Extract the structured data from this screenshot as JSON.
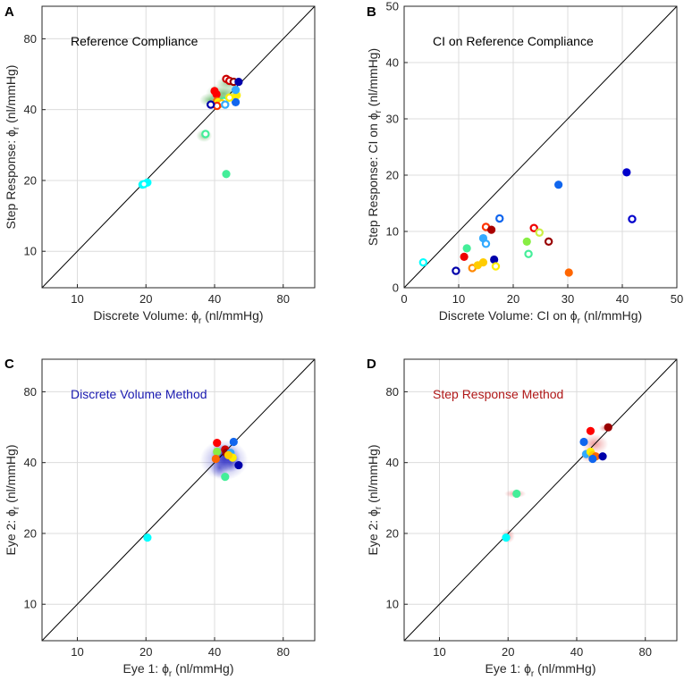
{
  "figure": {
    "panels": [
      {
        "id": "A",
        "label": "A"
      },
      {
        "id": "B",
        "label": "B"
      },
      {
        "id": "C",
        "label": "C"
      },
      {
        "id": "D",
        "label": "D"
      }
    ]
  },
  "chart_data": [
    {
      "panel": "A",
      "type": "scatter",
      "title": "Reference Compliance",
      "title_color": "#000000",
      "scale": "log",
      "xlabel": "Discrete Volume: ",
      "ylabel": "Step Response: ",
      "axis_symbol": "ϕ",
      "axis_subscript": "r",
      "axis_unit": " (nl/mmHg)",
      "xlim": [
        7,
        110
      ],
      "ylim": [
        7,
        110
      ],
      "ticks": [
        10,
        20,
        40,
        80
      ],
      "tick_labels": [
        "10",
        "20",
        "40",
        "80"
      ],
      "identity_line": true,
      "density": {
        "color": "#2a9a2a",
        "blobs": [
          [
            44,
            47,
            9,
            5
          ],
          [
            42,
            44,
            5,
            4
          ],
          [
            46,
            52,
            6,
            3
          ],
          [
            38,
            44,
            4,
            3
          ],
          [
            36,
            31,
            3,
            2
          ]
        ]
      },
      "points": [
        {
          "x": 19.3,
          "y": 19.2,
          "color": "#00ffff",
          "filled": true
        },
        {
          "x": 20.3,
          "y": 19.6,
          "color": "#00ffff",
          "filled": true
        },
        {
          "x": 19.6,
          "y": 19.3,
          "color": "#00ffff",
          "filled": false
        },
        {
          "x": 36.5,
          "y": 31.5,
          "color": "#44ee99",
          "filled": false
        },
        {
          "x": 45,
          "y": 21.3,
          "color": "#44ee99",
          "filled": true
        },
        {
          "x": 40,
          "y": 48,
          "color": "#ff0000",
          "filled": true
        },
        {
          "x": 40.8,
          "y": 46.5,
          "color": "#ff0000",
          "filled": true
        },
        {
          "x": 41,
          "y": 43.5,
          "color": "#ff6600",
          "filled": true
        },
        {
          "x": 41.5,
          "y": 43,
          "color": "#ffee00",
          "filled": true
        },
        {
          "x": 45,
          "y": 54,
          "color": "#cc0000",
          "filled": false
        },
        {
          "x": 46.5,
          "y": 53,
          "color": "#cc0000",
          "filled": false
        },
        {
          "x": 48.5,
          "y": 52.5,
          "color": "#990000",
          "filled": false
        },
        {
          "x": 51,
          "y": 52.5,
          "color": "#0000aa",
          "filled": true
        },
        {
          "x": 50,
          "y": 46,
          "color": "#ffee00",
          "filled": true
        },
        {
          "x": 49.5,
          "y": 48.5,
          "color": "#33aaff",
          "filled": true
        },
        {
          "x": 49.5,
          "y": 43,
          "color": "#1166ee",
          "filled": true
        },
        {
          "x": 44,
          "y": 43.5,
          "color": "#44ee99",
          "filled": false
        },
        {
          "x": 43,
          "y": 42.5,
          "color": "#ffcc00",
          "filled": false
        },
        {
          "x": 41,
          "y": 41.5,
          "color": "#ff3300",
          "filled": false
        },
        {
          "x": 44.5,
          "y": 42,
          "color": "#33aaff",
          "filled": false
        },
        {
          "x": 38.5,
          "y": 42,
          "color": "#0000aa",
          "filled": false
        },
        {
          "x": 46.5,
          "y": 45,
          "color": "#ffee00",
          "filled": false
        }
      ]
    },
    {
      "panel": "B",
      "type": "scatter",
      "title": "CI on Reference Compliance",
      "title_color": "#000000",
      "scale": "linear",
      "xlabel": "Discrete Volume: CI on ",
      "ylabel": "Step Response: CI on ",
      "axis_symbol": "ϕ",
      "axis_subscript": "r",
      "axis_unit": " (nl/mmHg)",
      "xlim": [
        0,
        50
      ],
      "ylim": [
        0,
        50
      ],
      "ticks": [
        0,
        10,
        20,
        30,
        40,
        50
      ],
      "tick_labels": [
        "0",
        "10",
        "20",
        "30",
        "40",
        "50"
      ],
      "identity_line": true,
      "points": [
        {
          "x": 3.5,
          "y": 4.5,
          "color": "#00ffff",
          "filled": false
        },
        {
          "x": 9.5,
          "y": 3,
          "color": "#0000aa",
          "filled": false
        },
        {
          "x": 11,
          "y": 5.5,
          "color": "#ee0000",
          "filled": true
        },
        {
          "x": 11.5,
          "y": 7,
          "color": "#44ee99",
          "filled": true
        },
        {
          "x": 12.5,
          "y": 3.5,
          "color": "#ff8800",
          "filled": false
        },
        {
          "x": 13.5,
          "y": 4,
          "color": "#ffcc00",
          "filled": true
        },
        {
          "x": 14.5,
          "y": 4.5,
          "color": "#ffcc00",
          "filled": true
        },
        {
          "x": 14.5,
          "y": 8.8,
          "color": "#33aaff",
          "filled": true
        },
        {
          "x": 15,
          "y": 7.8,
          "color": "#33aaff",
          "filled": false
        },
        {
          "x": 15,
          "y": 10.8,
          "color": "#ff3300",
          "filled": false
        },
        {
          "x": 16,
          "y": 10.3,
          "color": "#aa0000",
          "filled": true
        },
        {
          "x": 16.5,
          "y": 5,
          "color": "#0000aa",
          "filled": true
        },
        {
          "x": 16.8,
          "y": 3.8,
          "color": "#ffee00",
          "filled": false
        },
        {
          "x": 17.5,
          "y": 12.3,
          "color": "#1166ee",
          "filled": false
        },
        {
          "x": 22.5,
          "y": 8.2,
          "color": "#88ee44",
          "filled": true
        },
        {
          "x": 22.8,
          "y": 6,
          "color": "#44ee99",
          "filled": false
        },
        {
          "x": 23.8,
          "y": 10.6,
          "color": "#ee0000",
          "filled": false
        },
        {
          "x": 24.8,
          "y": 9.8,
          "color": "#ccee44",
          "filled": false
        },
        {
          "x": 26.5,
          "y": 8.2,
          "color": "#990000",
          "filled": false
        },
        {
          "x": 28.3,
          "y": 18.3,
          "color": "#1166ee",
          "filled": true
        },
        {
          "x": 30.2,
          "y": 2.7,
          "color": "#ff6600",
          "filled": true
        },
        {
          "x": 40.8,
          "y": 20.5,
          "color": "#0000cc",
          "filled": true
        },
        {
          "x": 41.8,
          "y": 12.2,
          "color": "#0000cc",
          "filled": false
        }
      ]
    },
    {
      "panel": "C",
      "type": "scatter",
      "title": "Discrete Volume Method",
      "title_color": "#1a1ab0",
      "scale": "log",
      "xlabel": "Eye 1: ",
      "ylabel": "Eye 2: ",
      "axis_symbol": "ϕ",
      "axis_subscript": "r",
      "axis_unit": " (nl/mmHg)",
      "xlim": [
        7,
        110
      ],
      "ylim": [
        7,
        110
      ],
      "ticks": [
        10,
        20,
        40,
        80
      ],
      "tick_labels": [
        "10",
        "20",
        "40",
        "80"
      ],
      "identity_line": true,
      "density": {
        "color": "#2020c0",
        "blobs": [
          [
            44,
            41,
            12,
            9
          ],
          [
            45,
            42,
            7,
            6
          ],
          [
            43,
            43,
            5,
            5
          ],
          [
            47,
            40,
            5,
            4
          ],
          [
            42,
            38,
            4,
            4
          ]
        ]
      },
      "points": [
        {
          "x": 20.3,
          "y": 19.2,
          "color": "#00ffff",
          "filled": true
        },
        {
          "x": 41,
          "y": 48.5,
          "color": "#ff0000",
          "filled": true
        },
        {
          "x": 41,
          "y": 44.5,
          "color": "#88ee44",
          "filled": true
        },
        {
          "x": 40.5,
          "y": 41.5,
          "color": "#ff6600",
          "filled": true
        },
        {
          "x": 44.5,
          "y": 45.5,
          "color": "#cc0000",
          "filled": true
        },
        {
          "x": 45,
          "y": 44,
          "color": "#990000",
          "filled": true
        },
        {
          "x": 48.5,
          "y": 49,
          "color": "#1166ee",
          "filled": true
        },
        {
          "x": 47,
          "y": 44,
          "color": "#33aaff",
          "filled": true
        },
        {
          "x": 48,
          "y": 42,
          "color": "#ffee00",
          "filled": true
        },
        {
          "x": 46,
          "y": 43,
          "color": "#ffcc00",
          "filled": true
        },
        {
          "x": 51,
          "y": 39,
          "color": "#0000aa",
          "filled": true
        },
        {
          "x": 44.5,
          "y": 34.8,
          "color": "#44ee99",
          "filled": true
        }
      ]
    },
    {
      "panel": "D",
      "type": "scatter",
      "title": "Step Response Method",
      "title_color": "#b01818",
      "scale": "log",
      "xlabel": "Eye 1: ",
      "ylabel": "Eye 2: ",
      "axis_symbol": "ϕ",
      "axis_subscript": "r",
      "axis_unit": " (nl/mmHg)",
      "xlim": [
        7,
        110
      ],
      "ylim": [
        7,
        110
      ],
      "ticks": [
        10,
        20,
        40,
        80
      ],
      "tick_labels": [
        "10",
        "20",
        "40",
        "80"
      ],
      "identity_line": true,
      "density": {
        "color": "#e04848",
        "blobs": [
          [
            48,
            48,
            7,
            5
          ],
          [
            45,
            43,
            4,
            3
          ],
          [
            53,
            56,
            3,
            2
          ],
          [
            21.5,
            29.5,
            2.5,
            1.2
          ],
          [
            20,
            19.5,
            1.4,
            1.4
          ]
        ]
      },
      "points": [
        {
          "x": 19.6,
          "y": 19.2,
          "color": "#00ffff",
          "filled": true
        },
        {
          "x": 21.8,
          "y": 29.5,
          "color": "#44ee99",
          "filled": true
        },
        {
          "x": 43,
          "y": 49,
          "color": "#1166ee",
          "filled": true
        },
        {
          "x": 46,
          "y": 54.5,
          "color": "#ff0000",
          "filled": true
        },
        {
          "x": 55,
          "y": 56.5,
          "color": "#990000",
          "filled": true
        },
        {
          "x": 44,
          "y": 43.5,
          "color": "#33aaff",
          "filled": true
        },
        {
          "x": 46,
          "y": 44.5,
          "color": "#ffee00",
          "filled": true
        },
        {
          "x": 47,
          "y": 43,
          "color": "#ffcc00",
          "filled": true
        },
        {
          "x": 48.5,
          "y": 42.5,
          "color": "#ff6600",
          "filled": true
        },
        {
          "x": 47,
          "y": 41.5,
          "color": "#1166ee",
          "filled": true
        },
        {
          "x": 52,
          "y": 42.5,
          "color": "#0000aa",
          "filled": true
        }
      ]
    }
  ]
}
